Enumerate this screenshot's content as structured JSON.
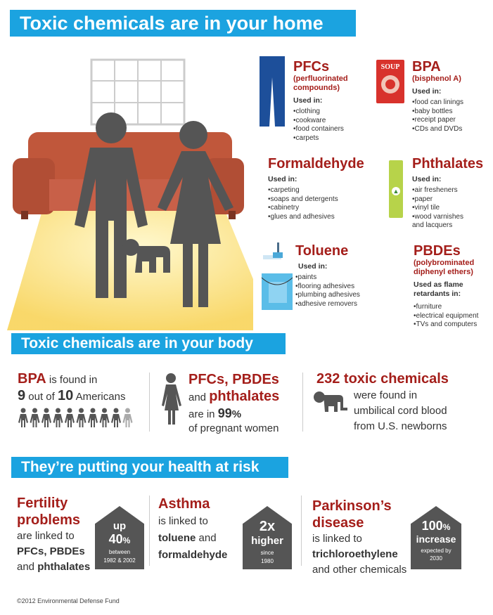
{
  "banners": {
    "home": "Toxic chemicals are in your home",
    "body": "Toxic chemicals are in your body",
    "risk": "They’re putting your health at risk"
  },
  "colors": {
    "banner": "#1ba3e0",
    "accent": "#a41e1a",
    "figure": "#555555"
  },
  "chemicals": {
    "pfcs": {
      "name": "PFCs",
      "sub": "(perfluorinated compounds)",
      "used": "Used in:",
      "items": [
        "clothing",
        "cookware",
        "food containers",
        "carpets"
      ],
      "icon": "jeans-icon"
    },
    "bpa": {
      "name": "BPA",
      "sub": "(bisphenol A)",
      "used": "Used in:",
      "items": [
        "food can linings",
        "baby bottles",
        "receipt paper",
        "CDs and DVDs"
      ],
      "icon": "soup-can-icon",
      "can_label": "SOUP"
    },
    "formaldehyde": {
      "name": "Formaldehyde",
      "used": "Used in:",
      "items": [
        "carpeting",
        "soaps and detergents",
        "cabinetry",
        "glues and adhesives"
      ]
    },
    "phthalates": {
      "name": "Phthalates",
      "used": "Used in:",
      "items": [
        "air fresheners",
        "paper",
        "vinyl tile",
        "wood varnishes and lacquers"
      ],
      "icon": "air-freshener-icon"
    },
    "toluene": {
      "name": "Toluene",
      "used": "Used in:",
      "items": [
        "paints",
        "flooring adhesives",
        "plumbing adhesives",
        "adhesive removers"
      ],
      "icon": "paint-can-icon"
    },
    "pbdes": {
      "name": "PBDEs",
      "sub": "(polybrominated diphenyl ethers)",
      "used": "Used as flame retardants in:",
      "items": [
        "furniture",
        "electrical equipment",
        "TVs and computers"
      ]
    }
  },
  "body": {
    "bpa": {
      "name": "BPA",
      "t1": " is found in",
      "n9": "9",
      "t2": " out of ",
      "n10": "10",
      "t3": " Americans",
      "affected": 9,
      "total": 10
    },
    "pregnant": {
      "names": "PFCs, PBDEs",
      "and": "and ",
      "phth": "phthalates",
      "are": "are in ",
      "pct": "99",
      "pctsign": "%",
      "of": "of pregnant women"
    },
    "cord": {
      "title": "232 toxic chemicals",
      "l1": "were found in",
      "l2": "umbilical cord blood",
      "l3": "from U.S. newborns"
    }
  },
  "risk": {
    "fertility": {
      "title1": "Fertility",
      "title2": "problems",
      "l1": "are linked to",
      "l2": "PFCs, PBDEs",
      "l3a": "and ",
      "l3b": "phthalates",
      "stat": {
        "top": "up",
        "big": "40",
        "unit": "%",
        "small1": "between",
        "small2": "1982 & 2002"
      }
    },
    "asthma": {
      "title": "Asthma",
      "l1": "is linked to",
      "l2a": "toluene",
      "l2b": " and",
      "l3": "formaldehyde",
      "stat": {
        "big": "2x",
        "mid": "higher",
        "small1": "since",
        "small2": "1980"
      }
    },
    "parkinsons": {
      "title1": "Parkinson’s",
      "title2": "disease",
      "l1": "is linked to",
      "l2": "trichloroethylene",
      "l3": "and other chemicals",
      "stat": {
        "big": "100",
        "unit": "%",
        "mid": "increase",
        "small1": "expected by",
        "small2": "2030"
      }
    }
  },
  "footer": "©2012 Environmental Defense Fund"
}
